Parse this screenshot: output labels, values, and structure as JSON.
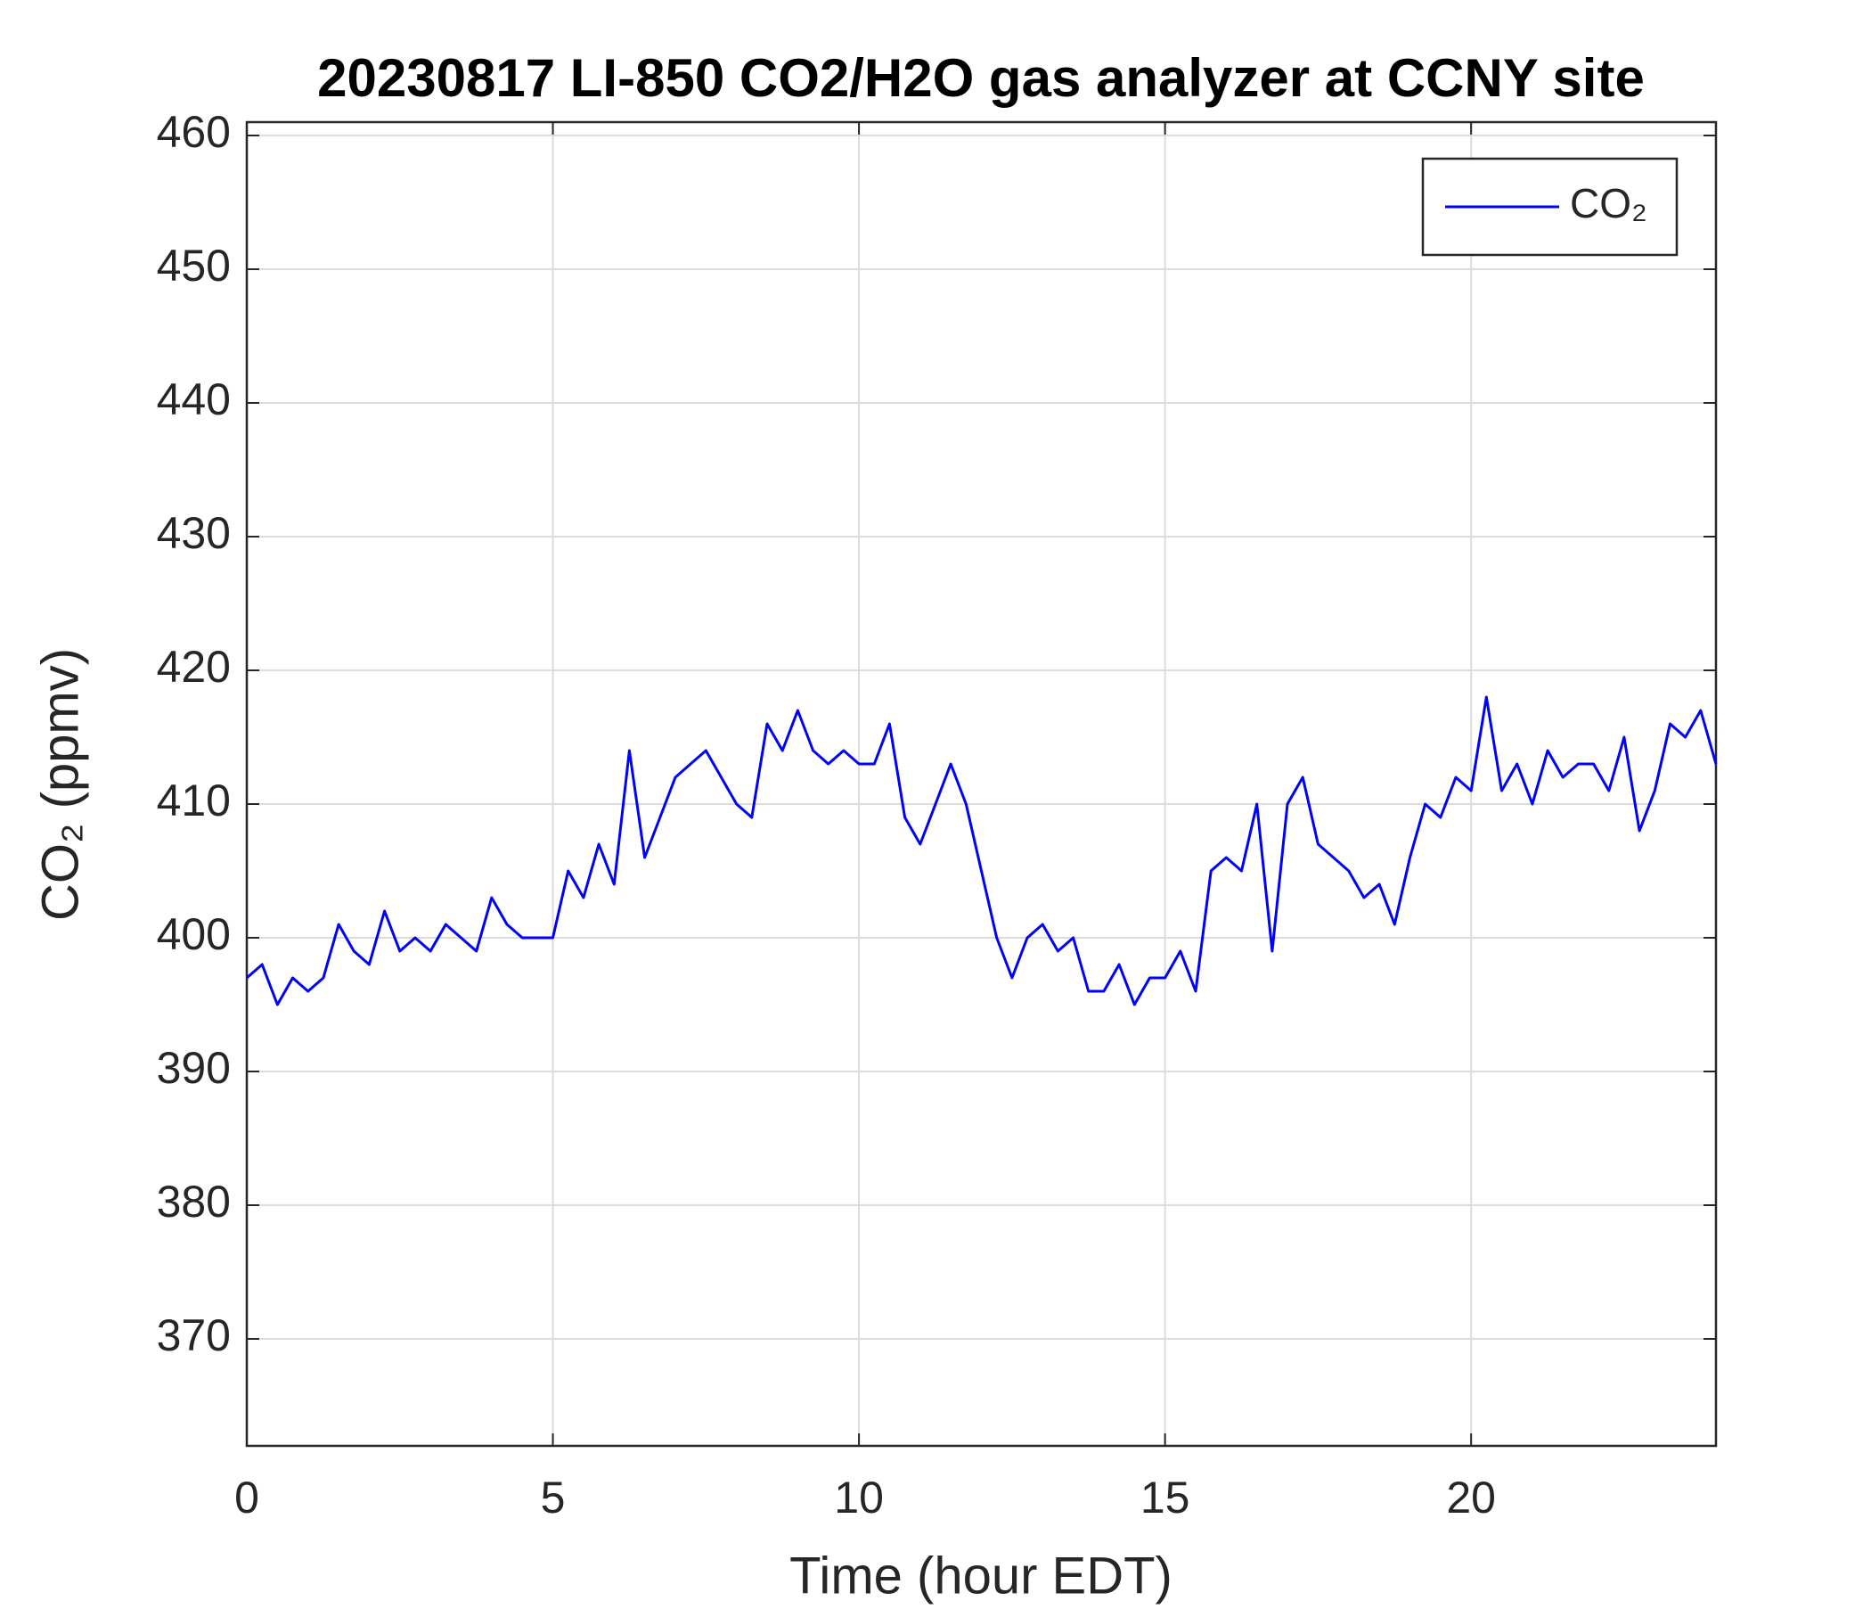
{
  "chart_data": {
    "type": "line",
    "title": "20230817 LI-850 CO2/H2O gas analyzer at CCNY site",
    "xlabel": "Time (hour EDT)",
    "ylabel": "CO₂ (ppmv)",
    "xlim": [
      0,
      24
    ],
    "xticks": [
      0,
      5,
      10,
      15,
      20
    ],
    "ylim": [
      362,
      461
    ],
    "yticks": [
      370,
      380,
      390,
      400,
      410,
      420,
      430,
      440,
      450,
      460
    ],
    "grid": true,
    "legend": "top-right",
    "x": [
      0,
      0.25,
      0.5,
      0.75,
      1,
      1.25,
      1.5,
      1.75,
      2,
      2.25,
      2.5,
      2.75,
      3,
      3.25,
      3.5,
      3.75,
      4,
      4.25,
      4.5,
      4.75,
      5,
      5.25,
      5.5,
      5.75,
      6,
      6.25,
      6.5,
      6.75,
      7,
      7.25,
      7.5,
      7.75,
      8,
      8.25,
      8.5,
      8.75,
      9,
      9.25,
      9.5,
      9.75,
      10,
      10.25,
      10.5,
      10.75,
      11,
      11.25,
      11.5,
      11.75,
      12,
      12.25,
      12.5,
      12.75,
      13,
      13.25,
      13.5,
      13.75,
      14,
      14.25,
      14.5,
      14.75,
      15,
      15.25,
      15.5,
      15.75,
      16,
      16.25,
      16.5,
      16.75,
      17,
      17.25,
      17.5,
      17.75,
      18,
      18.25,
      18.5,
      18.75,
      19,
      19.25,
      19.5,
      19.75,
      20,
      20.25,
      20.5,
      20.75,
      21,
      21.25,
      21.5,
      21.75,
      22,
      22.25,
      22.5,
      22.75,
      23,
      23.25,
      23.5,
      23.75,
      24
    ],
    "series": [
      {
        "name": "CO₂",
        "color": "#0000ff",
        "values": [
          397,
          398,
          395,
          397,
          396,
          397,
          401,
          399,
          398,
          402,
          399,
          400,
          399,
          401,
          400,
          399,
          403,
          401,
          400,
          400,
          400,
          405,
          403,
          407,
          404,
          414,
          406,
          409,
          412,
          413,
          414,
          412,
          410,
          409,
          416,
          414,
          417,
          414,
          413,
          414,
          413,
          413,
          416,
          409,
          407,
          410,
          413,
          410,
          405,
          400,
          397,
          400,
          401,
          399,
          400,
          396,
          396,
          398,
          395,
          397,
          397,
          399,
          396,
          405,
          406,
          405,
          410,
          399,
          410,
          412,
          407,
          406,
          405,
          403,
          404,
          401,
          406,
          410,
          409,
          412,
          411,
          418,
          411,
          413,
          410,
          414,
          412,
          413,
          413,
          411,
          415,
          408,
          411,
          416,
          415,
          417,
          413
        ]
      }
    ]
  }
}
